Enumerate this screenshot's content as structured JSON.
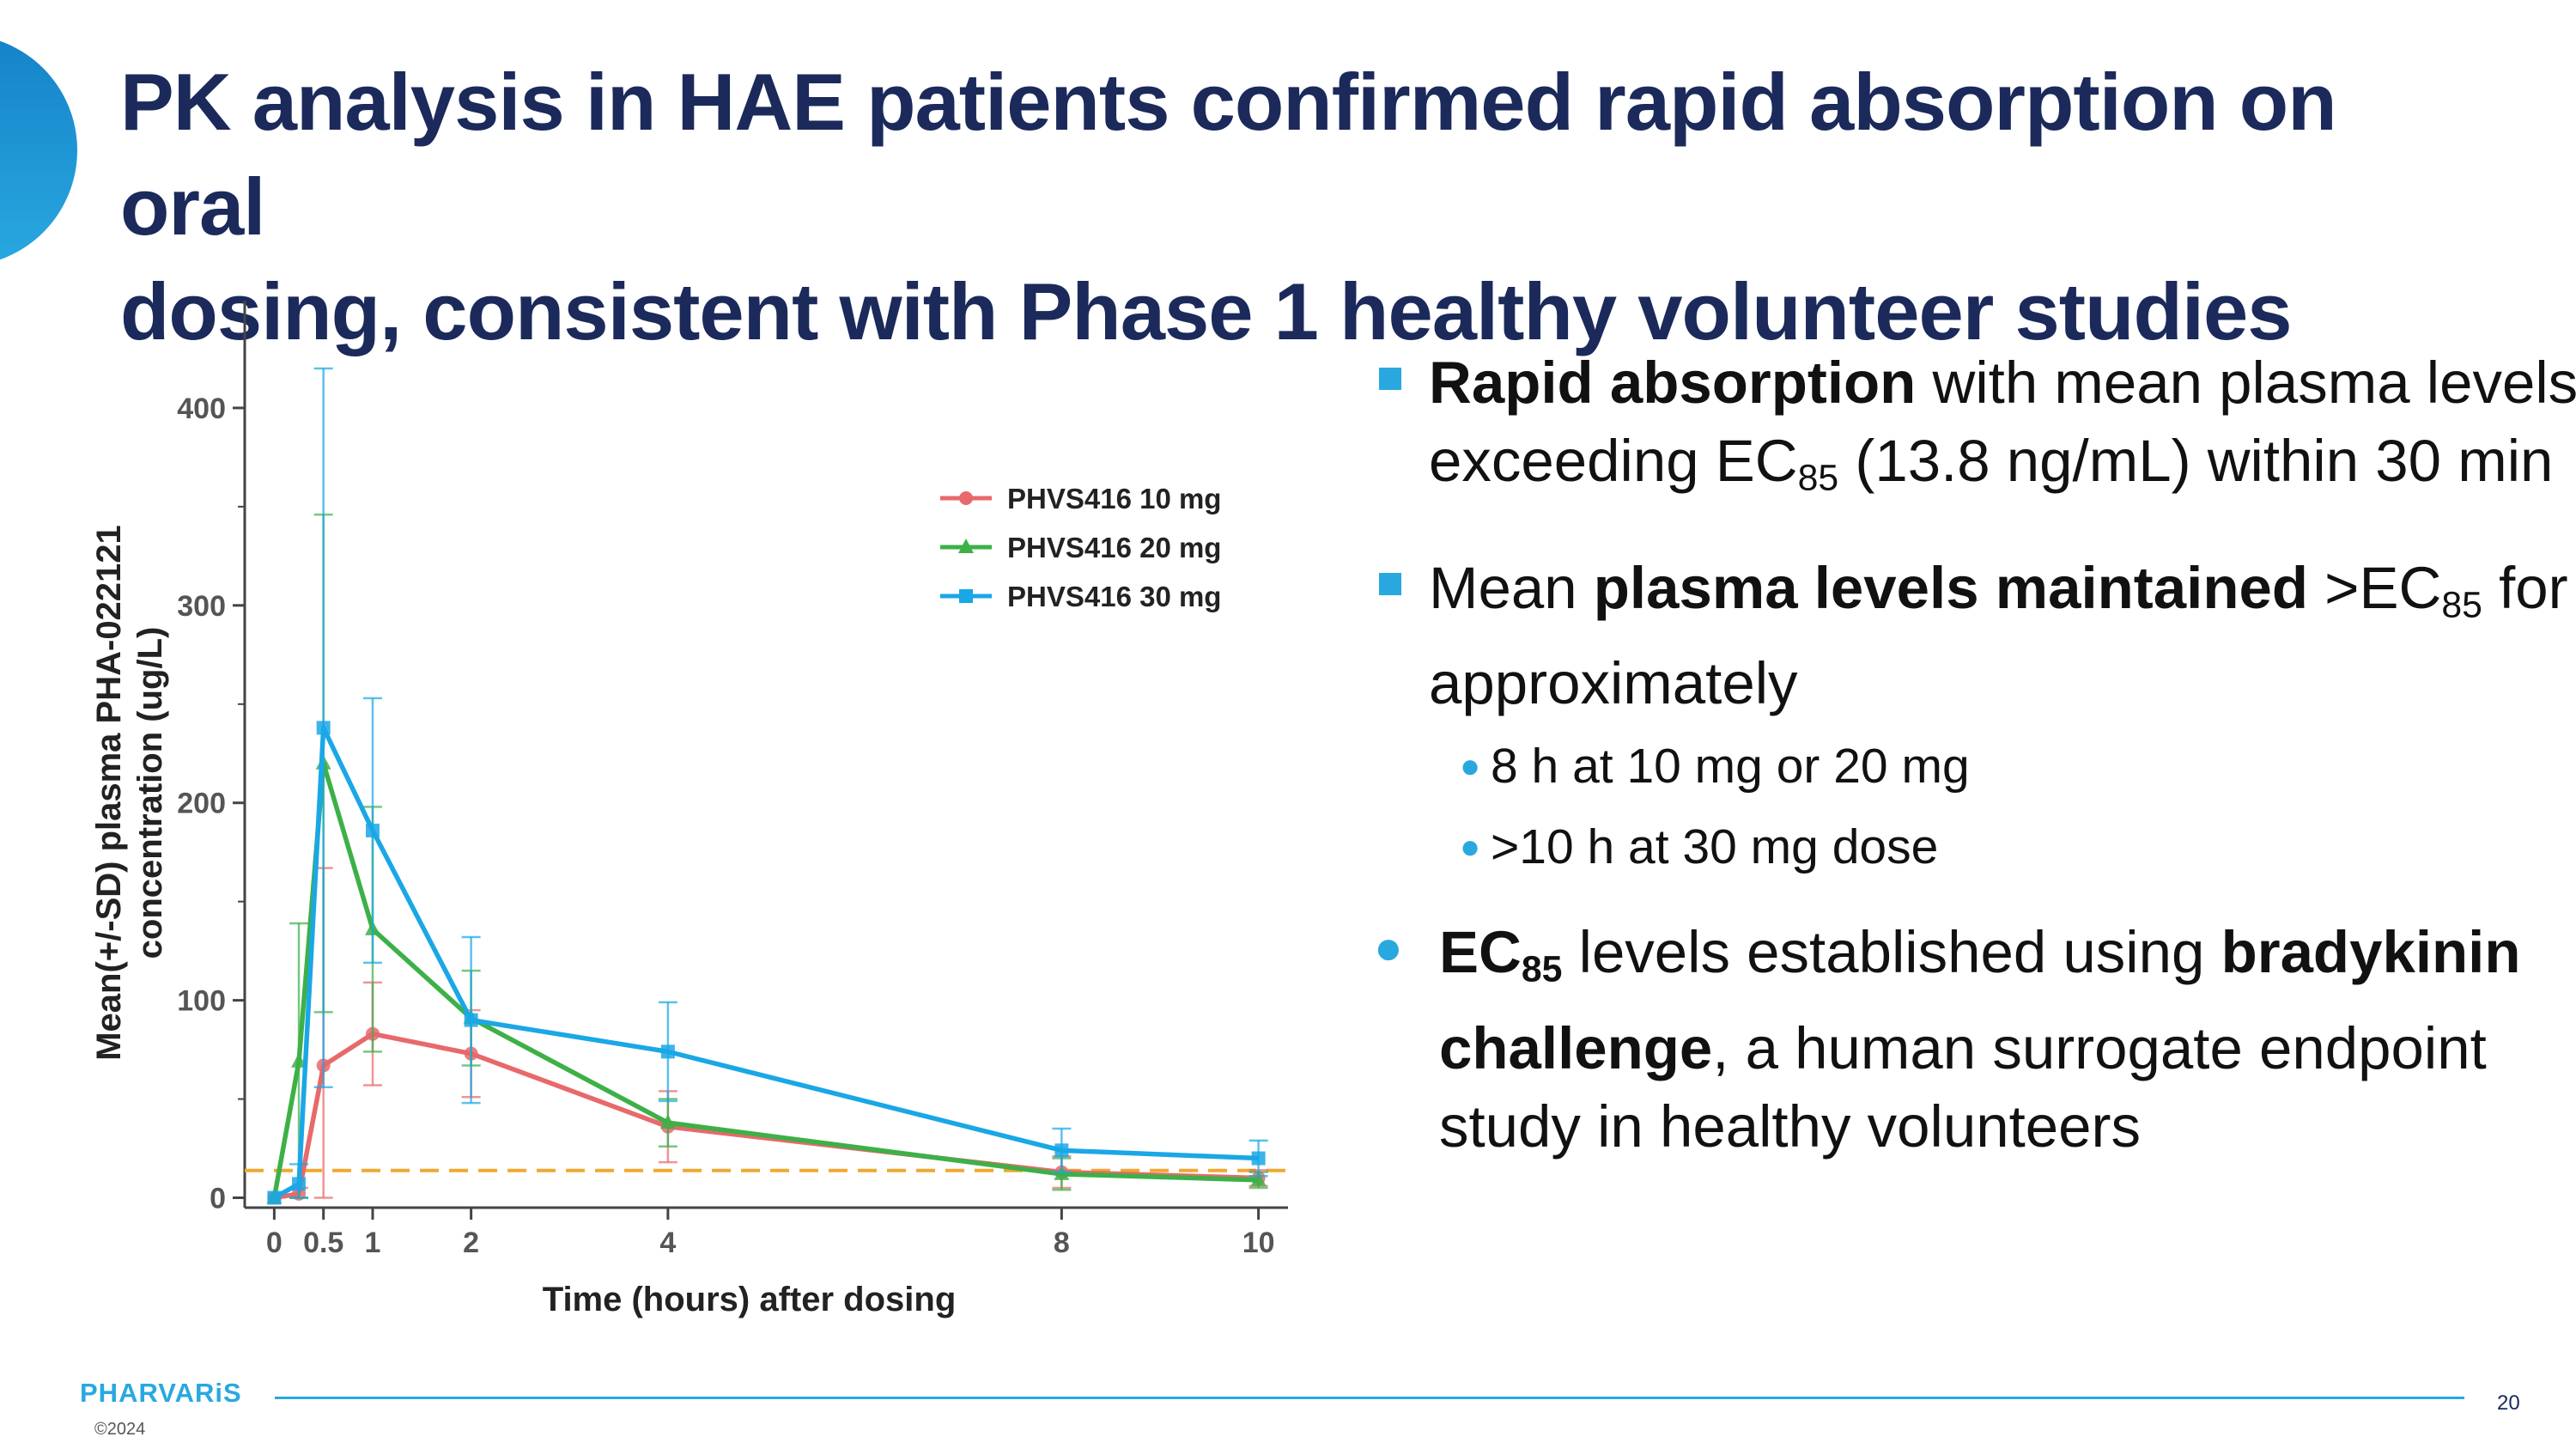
{
  "slide": {
    "title_line1": "PK analysis in HAE patients confirmed rapid absorption on oral",
    "title_line2": "dosing, consistent with Phase 1 healthy volunteer studies",
    "page_number": "20",
    "logo_text": "PHARVARiS",
    "copyright": "©2024",
    "colors": {
      "title": "#1b2a5b",
      "accent": "#29a8e0"
    }
  },
  "bullets": {
    "b1": {
      "bold": "Rapid absorption",
      "text1": " with mean plasma levels",
      "text2a": "exceeding EC",
      "sub": "85",
      "text2b": " (13.8 ng/mL) within 30 min"
    },
    "b2": {
      "text1a": "Mean ",
      "bold": "plasma levels maintained",
      "text1b": " >EC",
      "sub": "85",
      "text1c": " for",
      "text2": "approximately"
    },
    "b2_sub1": "8 h at 10 mg or 20 mg",
    "b2_sub2": ">10 h at 30 mg dose",
    "b3": {
      "bold1": "EC",
      "sub": "85",
      "text1": " levels established using ",
      "bold2": "bradykinin",
      "bold3": "challenge",
      "text2": ", a human surrogate endpoint",
      "text3": "study in healthy volunteers"
    }
  },
  "chart_data": {
    "type": "line",
    "xlabel": "Time (hours) after dosing",
    "ylabel_line1": "Mean(+/-SD) plasma PHA-022121",
    "ylabel_line2": "concentration (ug/L)",
    "xlim": [
      -0.3,
      10.3
    ],
    "ylim": [
      -5,
      450
    ],
    "x_ticks": [
      0,
      0.5,
      1,
      2,
      4,
      8,
      10
    ],
    "x_tick_labels": [
      "0",
      "0.5",
      "1",
      "2",
      "4",
      "8",
      "10"
    ],
    "y_ticks": [
      0,
      100,
      200,
      300,
      400
    ],
    "y_tick_labels": [
      "0",
      "100",
      "200",
      "300",
      "400"
    ],
    "reference_line": {
      "y": 13.8,
      "color": "#f0a830",
      "style": "dashed"
    },
    "legend_position": "top-right",
    "series": [
      {
        "name": "PHVS416 10 mg",
        "color": "#e8696b",
        "marker": "circle",
        "x": [
          0,
          0.25,
          0.5,
          1,
          2,
          4,
          8,
          10
        ],
        "y": [
          0,
          2,
          67,
          83,
          73,
          36,
          13,
          10
        ],
        "sd": [
          0,
          3,
          100,
          26,
          22,
          18,
          8,
          4
        ]
      },
      {
        "name": "PHVS416 20 mg",
        "color": "#3db048",
        "marker": "triangle",
        "x": [
          0,
          0.25,
          0.5,
          1,
          2,
          4,
          8,
          10
        ],
        "y": [
          0,
          69,
          220,
          136,
          91,
          38,
          12,
          9
        ],
        "sd": [
          0,
          70,
          126,
          62,
          24,
          12,
          8,
          4
        ]
      },
      {
        "name": "PHVS416 30 mg",
        "color": "#1aa7e6",
        "marker": "square",
        "x": [
          0,
          0.25,
          0.5,
          1,
          2,
          4,
          8,
          10
        ],
        "y": [
          0,
          7,
          238,
          186,
          90,
          74,
          24,
          20
        ],
        "sd": [
          0,
          10,
          182,
          67,
          42,
          25,
          11,
          9
        ]
      }
    ]
  }
}
